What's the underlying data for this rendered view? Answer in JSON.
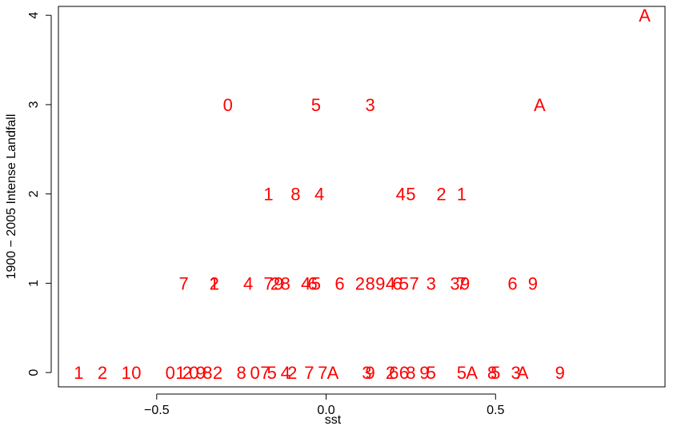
{
  "chart_data": {
    "type": "scatter",
    "marker_style": "text labels (decade digit / letter) drawn as point symbols",
    "point_color": "#ff0000",
    "xlabel": "sst",
    "ylabel": "1900 − 2005 Intense Landfall",
    "xlim": [
      -0.79,
      1.0
    ],
    "ylim": [
      -0.16,
      4.1
    ],
    "x_ticks": [
      -0.5,
      0.0,
      0.5
    ],
    "x_tick_labels": [
      "−0.5",
      "0.0",
      "0.5"
    ],
    "y_ticks": [
      0,
      1,
      2,
      3,
      4
    ],
    "y_tick_labels": [
      "0",
      "1",
      "2",
      "3",
      "4"
    ],
    "grid": false,
    "points": [
      {
        "x": 0.94,
        "y": 4,
        "label": "A"
      },
      {
        "x": -0.29,
        "y": 3,
        "label": "0"
      },
      {
        "x": -0.03,
        "y": 3,
        "label": "5"
      },
      {
        "x": 0.13,
        "y": 3,
        "label": "3"
      },
      {
        "x": 0.63,
        "y": 3,
        "label": "A"
      },
      {
        "x": -0.17,
        "y": 2,
        "label": "1"
      },
      {
        "x": -0.09,
        "y": 2,
        "label": "8"
      },
      {
        "x": -0.02,
        "y": 2,
        "label": "4"
      },
      {
        "x": 0.22,
        "y": 2,
        "label": "4"
      },
      {
        "x": 0.25,
        "y": 2,
        "label": "5"
      },
      {
        "x": 0.34,
        "y": 2,
        "label": "2"
      },
      {
        "x": 0.4,
        "y": 2,
        "label": "1"
      },
      {
        "x": -0.42,
        "y": 1,
        "label": "7"
      },
      {
        "x": -0.33,
        "y": 1,
        "label": "1"
      },
      {
        "x": -0.33,
        "y": 1,
        "label": "2"
      },
      {
        "x": -0.23,
        "y": 1,
        "label": "4"
      },
      {
        "x": -0.17,
        "y": 1,
        "label": "7"
      },
      {
        "x": -0.15,
        "y": 1,
        "label": "2"
      },
      {
        "x": -0.14,
        "y": 1,
        "label": "9"
      },
      {
        "x": -0.12,
        "y": 1,
        "label": "8"
      },
      {
        "x": -0.06,
        "y": 1,
        "label": "4"
      },
      {
        "x": -0.04,
        "y": 1,
        "label": "6"
      },
      {
        "x": -0.03,
        "y": 1,
        "label": "5"
      },
      {
        "x": 0.04,
        "y": 1,
        "label": "6"
      },
      {
        "x": 0.1,
        "y": 1,
        "label": "2"
      },
      {
        "x": 0.13,
        "y": 1,
        "label": "8"
      },
      {
        "x": 0.16,
        "y": 1,
        "label": "9"
      },
      {
        "x": 0.19,
        "y": 1,
        "label": "4"
      },
      {
        "x": 0.21,
        "y": 1,
        "label": "6"
      },
      {
        "x": 0.23,
        "y": 1,
        "label": "5"
      },
      {
        "x": 0.26,
        "y": 1,
        "label": "7"
      },
      {
        "x": 0.31,
        "y": 1,
        "label": "3"
      },
      {
        "x": 0.38,
        "y": 1,
        "label": "3"
      },
      {
        "x": 0.4,
        "y": 1,
        "label": "7"
      },
      {
        "x": 0.41,
        "y": 1,
        "label": "9"
      },
      {
        "x": 0.55,
        "y": 1,
        "label": "6"
      },
      {
        "x": 0.61,
        "y": 1,
        "label": "9"
      },
      {
        "x": -0.73,
        "y": 0,
        "label": "1"
      },
      {
        "x": -0.66,
        "y": 0,
        "label": "2"
      },
      {
        "x": -0.59,
        "y": 0,
        "label": "1"
      },
      {
        "x": -0.56,
        "y": 0,
        "label": "0"
      },
      {
        "x": -0.46,
        "y": 0,
        "label": "0"
      },
      {
        "x": -0.43,
        "y": 0,
        "label": "1"
      },
      {
        "x": -0.41,
        "y": 0,
        "label": "2"
      },
      {
        "x": -0.39,
        "y": 0,
        "label": "0"
      },
      {
        "x": -0.37,
        "y": 0,
        "label": "9"
      },
      {
        "x": -0.35,
        "y": 0,
        "label": "8"
      },
      {
        "x": -0.32,
        "y": 0,
        "label": "2"
      },
      {
        "x": -0.25,
        "y": 0,
        "label": "8"
      },
      {
        "x": -0.21,
        "y": 0,
        "label": "0"
      },
      {
        "x": -0.18,
        "y": 0,
        "label": "7"
      },
      {
        "x": -0.16,
        "y": 0,
        "label": "5"
      },
      {
        "x": -0.12,
        "y": 0,
        "label": "4"
      },
      {
        "x": -0.1,
        "y": 0,
        "label": "2"
      },
      {
        "x": -0.05,
        "y": 0,
        "label": "7"
      },
      {
        "x": -0.01,
        "y": 0,
        "label": "7"
      },
      {
        "x": 0.02,
        "y": 0,
        "label": "A"
      },
      {
        "x": 0.12,
        "y": 0,
        "label": "3"
      },
      {
        "x": 0.13,
        "y": 0,
        "label": "9"
      },
      {
        "x": 0.19,
        "y": 0,
        "label": "2"
      },
      {
        "x": 0.2,
        "y": 0,
        "label": "6"
      },
      {
        "x": 0.23,
        "y": 0,
        "label": "6"
      },
      {
        "x": 0.25,
        "y": 0,
        "label": "8"
      },
      {
        "x": 0.29,
        "y": 0,
        "label": "9"
      },
      {
        "x": 0.31,
        "y": 0,
        "label": "5"
      },
      {
        "x": 0.4,
        "y": 0,
        "label": "5"
      },
      {
        "x": 0.43,
        "y": 0,
        "label": "A"
      },
      {
        "x": 0.49,
        "y": 0,
        "label": "8"
      },
      {
        "x": 0.5,
        "y": 0,
        "label": "5"
      },
      {
        "x": 0.56,
        "y": 0,
        "label": "3"
      },
      {
        "x": 0.58,
        "y": 0,
        "label": "A"
      },
      {
        "x": 0.69,
        "y": 0,
        "label": "9"
      }
    ]
  }
}
